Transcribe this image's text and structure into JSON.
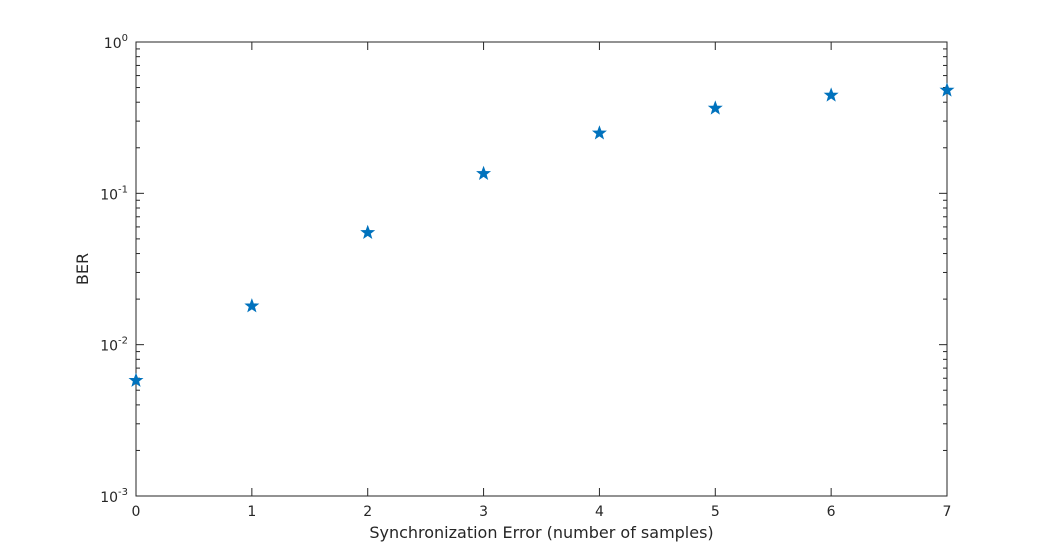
{
  "chart_data": {
    "type": "scatter",
    "title": "",
    "xlabel": "Synchronization Error (number of samples)",
    "ylabel": "BER",
    "xlim": [
      0,
      7
    ],
    "ylim": [
      0.001,
      1
    ],
    "yscale": "log",
    "grid": false,
    "marker": "star",
    "color": "#0072BD",
    "x_ticks": [
      "0",
      "1",
      "2",
      "3",
      "4",
      "5",
      "6",
      "7"
    ],
    "y_ticks": [
      {
        "value": 0.001,
        "base": "10",
        "exp": "-3"
      },
      {
        "value": 0.01,
        "base": "10",
        "exp": "-2"
      },
      {
        "value": 0.1,
        "base": "10",
        "exp": "-1"
      },
      {
        "value": 1,
        "base": "10",
        "exp": "0"
      }
    ],
    "series": [
      {
        "x": [
          0,
          1,
          2,
          3,
          4,
          5,
          6,
          7
        ],
        "y": [
          0.0058,
          0.018,
          0.055,
          0.135,
          0.25,
          0.365,
          0.445,
          0.48
        ]
      }
    ]
  }
}
